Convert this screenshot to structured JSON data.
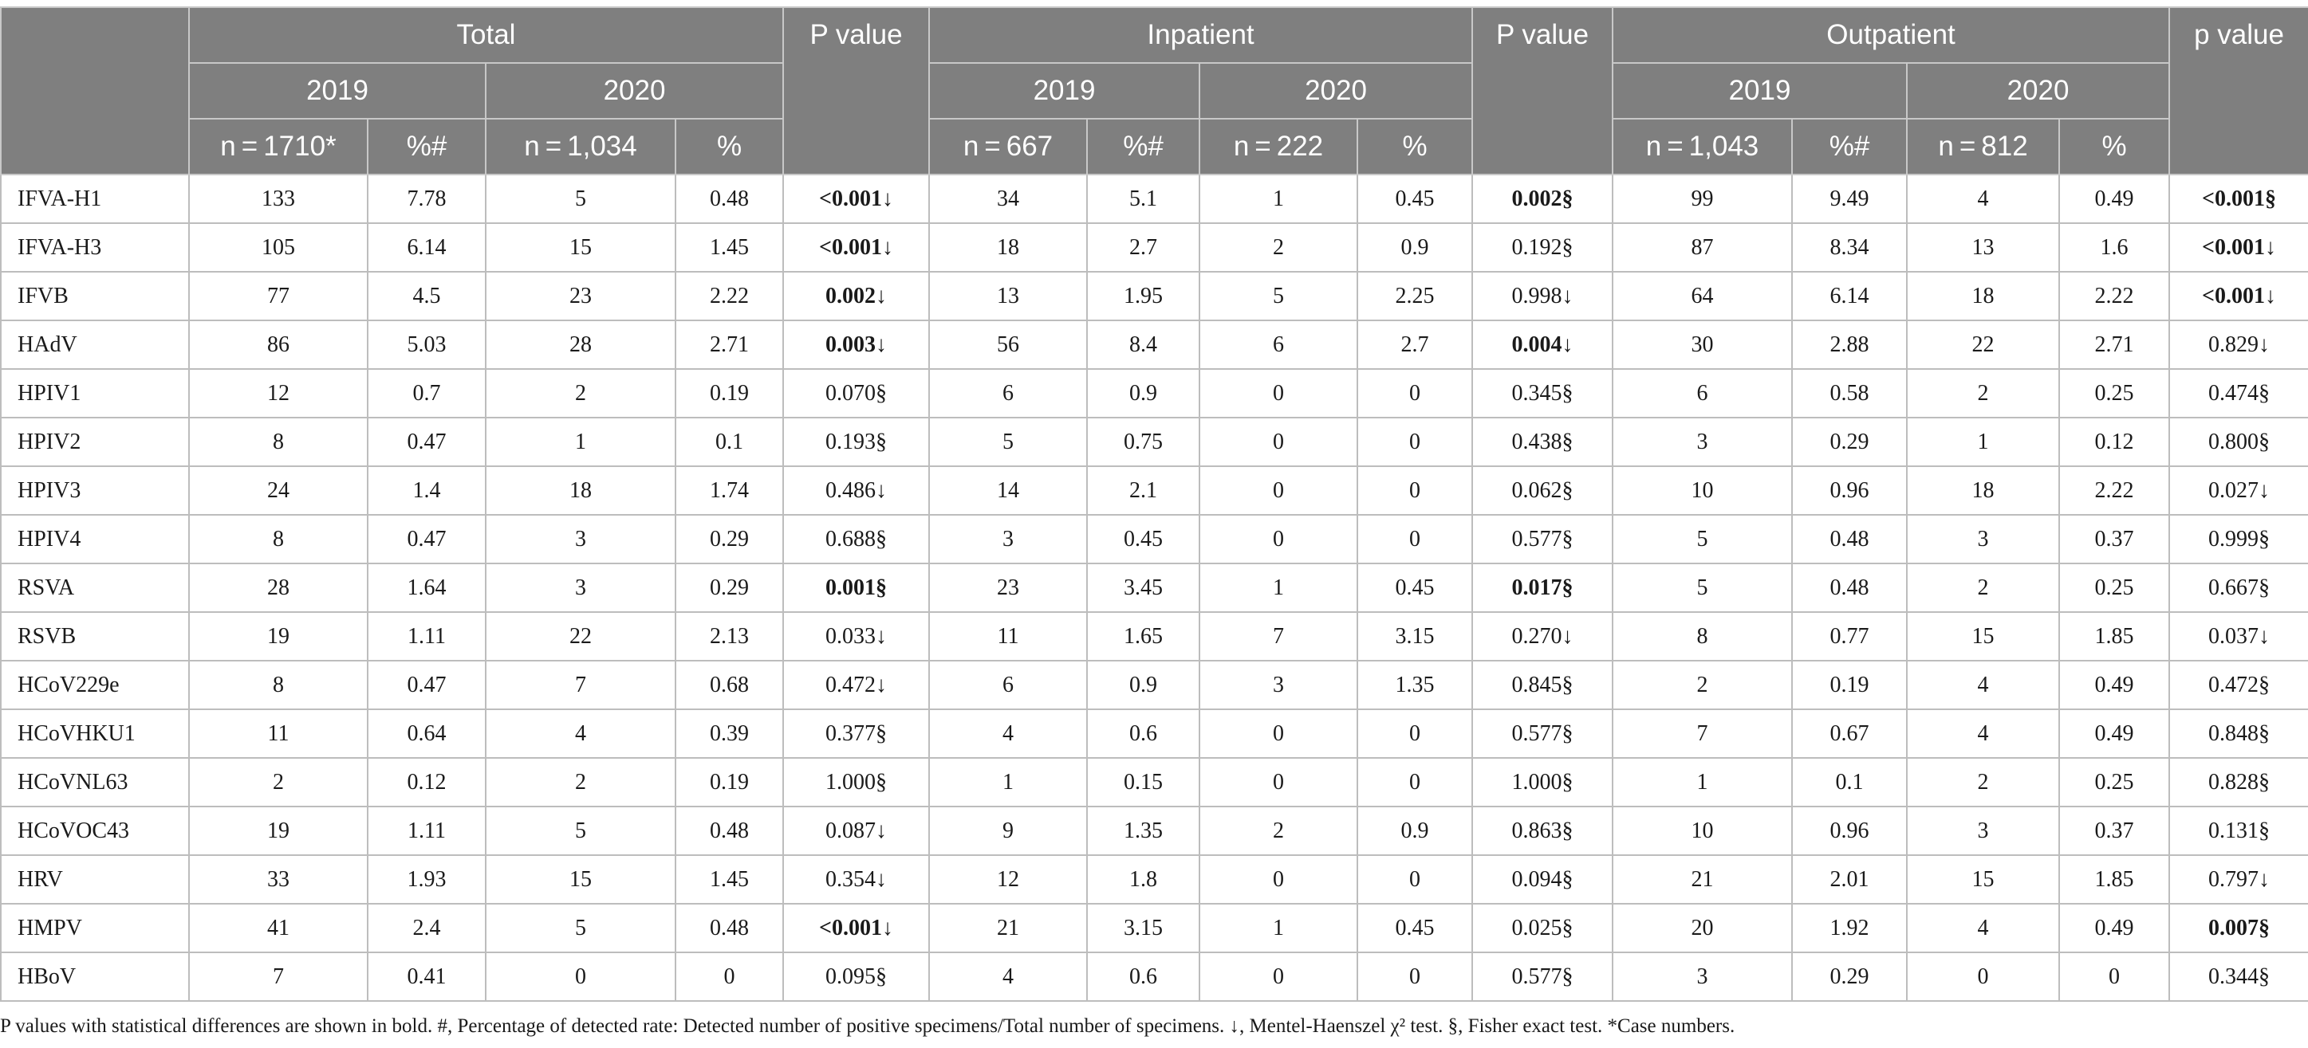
{
  "header": {
    "groups": [
      "Total",
      "Inpatient",
      "Outpatient"
    ],
    "pvalue_labels": [
      "P value",
      "P value",
      "p value"
    ],
    "years": [
      "2019",
      "2020",
      "2019",
      "2020",
      "2019",
      "2020"
    ],
    "subheaders": [
      "n = 1710*",
      "%#",
      "n = 1,034",
      "%",
      "n = 667",
      "%#",
      "n = 222",
      "%",
      "n = 1,043",
      "%#",
      "n = 812",
      "%"
    ]
  },
  "rows": [
    {
      "name": "IFVA-H1",
      "cells": [
        "133",
        "7.78",
        "5",
        "0.48",
        "<0.001↓",
        "34",
        "5.1",
        "1",
        "0.45",
        "0.002§",
        "99",
        "9.49",
        "4",
        "0.49",
        "<0.001§"
      ],
      "bold": [
        4,
        9,
        14
      ]
    },
    {
      "name": "IFVA-H3",
      "cells": [
        "105",
        "6.14",
        "15",
        "1.45",
        "<0.001↓",
        "18",
        "2.7",
        "2",
        "0.9",
        "0.192§",
        "87",
        "8.34",
        "13",
        "1.6",
        "<0.001↓"
      ],
      "bold": [
        4,
        14
      ]
    },
    {
      "name": "IFVB",
      "cells": [
        "77",
        "4.5",
        "23",
        "2.22",
        "0.002↓",
        "13",
        "1.95",
        "5",
        "2.25",
        "0.998↓",
        "64",
        "6.14",
        "18",
        "2.22",
        "<0.001↓"
      ],
      "bold": [
        4,
        14
      ]
    },
    {
      "name": "HAdV",
      "cells": [
        "86",
        "5.03",
        "28",
        "2.71",
        "0.003↓",
        "56",
        "8.4",
        "6",
        "2.7",
        "0.004↓",
        "30",
        "2.88",
        "22",
        "2.71",
        "0.829↓"
      ],
      "bold": [
        4,
        9
      ]
    },
    {
      "name": "HPIV1",
      "cells": [
        "12",
        "0.7",
        "2",
        "0.19",
        "0.070§",
        "6",
        "0.9",
        "0",
        "0",
        "0.345§",
        "6",
        "0.58",
        "2",
        "0.25",
        "0.474§"
      ],
      "bold": []
    },
    {
      "name": "HPIV2",
      "cells": [
        "8",
        "0.47",
        "1",
        "0.1",
        "0.193§",
        "5",
        "0.75",
        "0",
        "0",
        "0.438§",
        "3",
        "0.29",
        "1",
        "0.12",
        "0.800§"
      ],
      "bold": []
    },
    {
      "name": "HPIV3",
      "cells": [
        "24",
        "1.4",
        "18",
        "1.74",
        "0.486↓",
        "14",
        "2.1",
        "0",
        "0",
        "0.062§",
        "10",
        "0.96",
        "18",
        "2.22",
        "0.027↓"
      ],
      "bold": []
    },
    {
      "name": "HPIV4",
      "cells": [
        "8",
        "0.47",
        "3",
        "0.29",
        "0.688§",
        "3",
        "0.45",
        "0",
        "0",
        "0.577§",
        "5",
        "0.48",
        "3",
        "0.37",
        "0.999§"
      ],
      "bold": []
    },
    {
      "name": "RSVA",
      "cells": [
        "28",
        "1.64",
        "3",
        "0.29",
        "0.001§",
        "23",
        "3.45",
        "1",
        "0.45",
        "0.017§",
        "5",
        "0.48",
        "2",
        "0.25",
        "0.667§"
      ],
      "bold": [
        4,
        9
      ]
    },
    {
      "name": "RSVB",
      "cells": [
        "19",
        "1.11",
        "22",
        "2.13",
        "0.033↓",
        "11",
        "1.65",
        "7",
        "3.15",
        "0.270↓",
        "8",
        "0.77",
        "15",
        "1.85",
        "0.037↓"
      ],
      "bold": []
    },
    {
      "name": "HCoV229e",
      "cells": [
        "8",
        "0.47",
        "7",
        "0.68",
        "0.472↓",
        "6",
        "0.9",
        "3",
        "1.35",
        "0.845§",
        "2",
        "0.19",
        "4",
        "0.49",
        "0.472§"
      ],
      "bold": []
    },
    {
      "name": "HCoVHKU1",
      "cells": [
        "11",
        "0.64",
        "4",
        "0.39",
        "0.377§",
        "4",
        "0.6",
        "0",
        "0",
        "0.577§",
        "7",
        "0.67",
        "4",
        "0.49",
        "0.848§"
      ],
      "bold": []
    },
    {
      "name": "HCoVNL63",
      "cells": [
        "2",
        "0.12",
        "2",
        "0.19",
        "1.000§",
        "1",
        "0.15",
        "0",
        "0",
        "1.000§",
        "1",
        "0.1",
        "2",
        "0.25",
        "0.828§"
      ],
      "bold": []
    },
    {
      "name": "HCoVOC43",
      "cells": [
        "19",
        "1.11",
        "5",
        "0.48",
        "0.087↓",
        "9",
        "1.35",
        "2",
        "0.9",
        "0.863§",
        "10",
        "0.96",
        "3",
        "0.37",
        "0.131§"
      ],
      "bold": []
    },
    {
      "name": "HRV",
      "cells": [
        "33",
        "1.93",
        "15",
        "1.45",
        "0.354↓",
        "12",
        "1.8",
        "0",
        "0",
        "0.094§",
        "21",
        "2.01",
        "15",
        "1.85",
        "0.797↓"
      ],
      "bold": []
    },
    {
      "name": "HMPV",
      "cells": [
        "41",
        "2.4",
        "5",
        "0.48",
        "<0.001↓",
        "21",
        "3.15",
        "1",
        "0.45",
        "0.025§",
        "20",
        "1.92",
        "4",
        "0.49",
        "0.007§"
      ],
      "bold": [
        4,
        14
      ]
    },
    {
      "name": "HBoV",
      "cells": [
        "7",
        "0.41",
        "0",
        "0",
        "0.095§",
        "4",
        "0.6",
        "0",
        "0",
        "0.577§",
        "3",
        "0.29",
        "0",
        "0",
        "0.344§"
      ],
      "bold": []
    }
  ],
  "footnote": "P values with statistical differences are shown in bold. #, Percentage of detected rate: Detected number of positive specimens/Total number of specimens. ↓, Mentel-Haenszel χ² test. §, Fisher exact test. *Case numbers."
}
